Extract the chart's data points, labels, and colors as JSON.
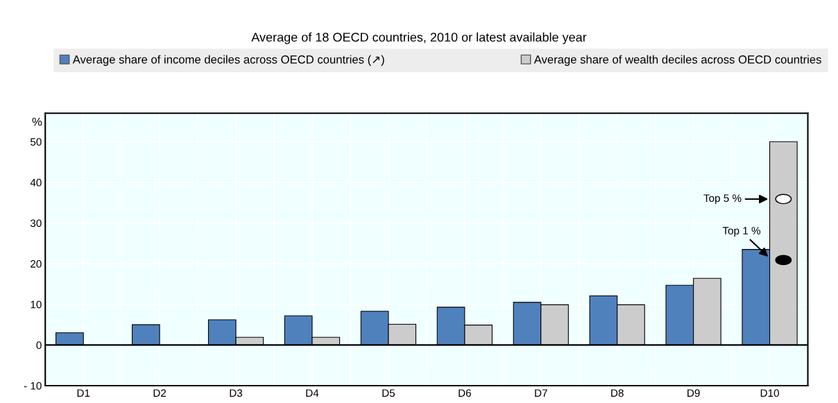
{
  "chart_data": {
    "type": "bar",
    "title": "Average of 18 OECD countries, 2010 or latest available year",
    "ylabel": "%",
    "categories": [
      "D1",
      "D2",
      "D3",
      "D4",
      "D5",
      "D6",
      "D7",
      "D8",
      "D9",
      "D10"
    ],
    "series": [
      {
        "name": "Average share of income deciles across OECD countries (↗)",
        "color": "#4f81bd",
        "values": [
          3.0,
          5.0,
          6.2,
          7.2,
          8.3,
          9.3,
          10.5,
          12.1,
          14.7,
          23.5
        ]
      },
      {
        "name": "Average share of wealth deciles across OECD countries",
        "color": "#cccccc",
        "values": [
          0,
          0,
          1.9,
          1.9,
          5.1,
          4.9,
          9.9,
          9.9,
          16.4,
          50.0
        ]
      },
      {
        "type": "scatter",
        "x": [
          "D10",
          "D10"
        ],
        "colors": [
          "#ffffff",
          "#000000"
        ],
        "values": [
          35.9,
          20.9
        ]
      }
    ],
    "ylim": [
      -10,
      57
    ],
    "yticks": [
      {
        "value": -10,
        "label": "- 10"
      },
      0,
      10,
      20,
      30,
      40,
      50
    ],
    "ref_lines": [
      {
        "axis": "y",
        "value": 0,
        "color": "#000000"
      }
    ],
    "annotations": [
      {
        "text": "Top 5 %",
        "x": "D10",
        "y": 35.9
      },
      {
        "text": "Top 1 %",
        "x": "D10",
        "y": 20.9
      }
    ],
    "grid": true,
    "legend": "top"
  }
}
